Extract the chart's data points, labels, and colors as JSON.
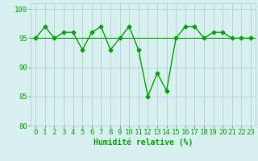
{
  "x": [
    0,
    1,
    2,
    3,
    4,
    5,
    6,
    7,
    8,
    9,
    10,
    11,
    12,
    13,
    14,
    15,
    16,
    17,
    18,
    19,
    20,
    21,
    22,
    23
  ],
  "y": [
    95,
    97,
    95,
    96,
    96,
    93,
    96,
    97,
    93,
    95,
    97,
    93,
    85,
    89,
    86,
    95,
    97,
    97,
    95,
    96,
    96,
    95,
    95,
    95
  ],
  "line_color": "#00aa00",
  "marker": "D",
  "marker_size": 2.5,
  "bg_color": "#d8f0f0",
  "grid_color": "#aacccc",
  "line_width": 1.0,
  "ylim": [
    80,
    101
  ],
  "yticks": [
    80,
    85,
    90,
    95,
    100
  ],
  "xlabel": "Humidité relative (%)",
  "xlabel_color": "#00aa00",
  "xlabel_fontsize": 7,
  "tick_fontsize": 6.5,
  "tick_color": "#00aa00",
  "hline_y": 95
}
